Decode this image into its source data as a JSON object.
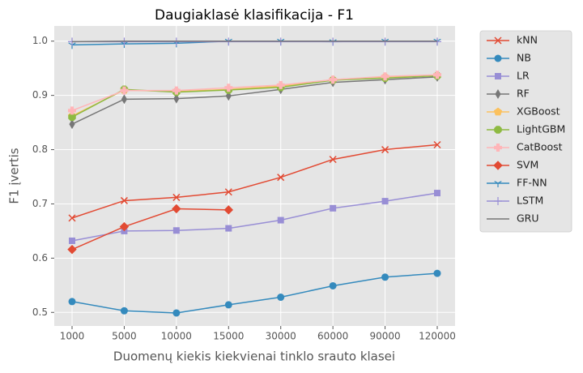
{
  "chart_data": {
    "type": "line",
    "title": "Daugiaklasė klasifikacija - F1",
    "xlabel": "Duomenų kiekis kiekvienai tinklo srauto klasei",
    "ylabel": "F1 įvertis",
    "categories": [
      "1000",
      "5000",
      "10000",
      "15000",
      "30000",
      "60000",
      "90000",
      "120000"
    ],
    "ylim": [
      0.475,
      1.028
    ],
    "yticks": [
      0.5,
      0.6,
      0.7,
      0.8,
      0.9,
      {
        "value": 1,
        "label": "1.0"
      }
    ],
    "grid": true,
    "legend": "outside upper right",
    "series": [
      {
        "name": "kNN",
        "color": "#E24A33",
        "marker": "x",
        "values": [
          0.674,
          0.706,
          0.712,
          0.722,
          0.749,
          0.782,
          0.8,
          0.809
        ]
      },
      {
        "name": "NB",
        "color": "#348ABD",
        "marker": "o",
        "values": [
          0.52,
          0.503,
          0.499,
          0.514,
          0.528,
          0.549,
          0.565,
          0.572
        ]
      },
      {
        "name": "LR",
        "color": "#988ED5",
        "marker": "s",
        "values": [
          0.632,
          0.65,
          0.651,
          0.655,
          0.67,
          0.692,
          0.705,
          0.72
        ]
      },
      {
        "name": "RF",
        "color": "#777777",
        "marker": "d",
        "values": [
          0.847,
          0.893,
          0.894,
          0.899,
          0.911,
          0.924,
          0.929,
          0.934
        ]
      },
      {
        "name": "XGBoost",
        "color": "#FBC15E",
        "marker": "p",
        "values": [
          0.862,
          0.91,
          0.907,
          0.911,
          0.917,
          0.929,
          0.934,
          0.937
        ]
      },
      {
        "name": "LightGBM",
        "color": "#8EBA42",
        "marker": "8",
        "values": [
          0.86,
          0.911,
          0.906,
          0.91,
          0.915,
          0.928,
          0.932,
          0.936
        ]
      },
      {
        "name": "CatBoost",
        "color": "#FFB5B8",
        "marker": "P",
        "values": [
          0.872,
          0.909,
          0.909,
          0.914,
          0.919,
          0.929,
          0.935,
          0.938
        ]
      },
      {
        "name": "SVM",
        "color": "#E24A33",
        "marker": "D",
        "values": [
          0.616,
          0.658,
          0.691,
          0.689,
          null,
          null,
          null,
          null
        ]
      },
      {
        "name": "FF-NN",
        "color": "#348ABD",
        "marker": "1",
        "values": [
          0.993,
          0.995,
          0.996,
          1.0,
          1.0,
          0.999,
          1.0,
          1.0
        ]
      },
      {
        "name": "LSTM",
        "color": "#988ED5",
        "marker": "+",
        "values": [
          0.999,
          0.999,
          0.999,
          0.999,
          0.999,
          0.999,
          0.999,
          0.999
        ]
      },
      {
        "name": "GRU",
        "color": "#777777",
        "marker": "none",
        "values": [
          0.999,
          1.0,
          1.0,
          1.0,
          1.0,
          1.0,
          1.0,
          1.0
        ]
      }
    ]
  }
}
